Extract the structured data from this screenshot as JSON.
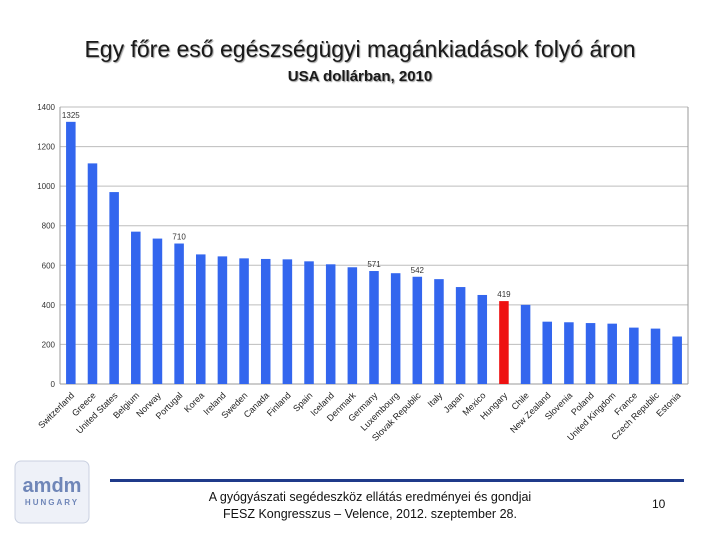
{
  "slide": {
    "title": "Egy főre eső egészségügyi magánkiadások folyó áron",
    "subtitle": "USA dollárban, 2010",
    "footer_line1": "A gyógyászati segédeszköz ellátás eredményei és gondjai",
    "footer_line2": "FESZ Kongresszus – Velence, 2012. szeptember 28.",
    "page_number": "10",
    "logo_text": "amdm",
    "logo_subtext": "HUNGARY"
  },
  "chart_data": {
    "type": "bar",
    "categories": [
      "Switzerland",
      "Greece",
      "United States",
      "Belgium",
      "Norway",
      "Portugal",
      "Korea",
      "Ireland",
      "Sweden",
      "Canada",
      "Finland",
      "Spain",
      "Iceland",
      "Denmark",
      "Germany",
      "Luxembourg",
      "Slovak Republic",
      "Italy",
      "Japan",
      "Mexico",
      "Hungary",
      "Chile",
      "New Zealand",
      "Slovenia",
      "Poland",
      "United Kingdom",
      "France",
      "Czech Republic",
      "Estonia"
    ],
    "values": [
      1325,
      1115,
      970,
      770,
      735,
      710,
      655,
      645,
      635,
      632,
      630,
      620,
      605,
      590,
      571,
      560,
      542,
      530,
      490,
      450,
      419,
      400,
      315,
      312,
      308,
      305,
      285,
      280,
      240
    ],
    "labeled": {
      "0": "1325",
      "5": "710",
      "14": "571",
      "16": "542",
      "20": "419"
    },
    "ylim": [
      0,
      1400
    ],
    "yticks": [
      0,
      200,
      400,
      600,
      800,
      1000,
      1200,
      1400
    ],
    "grid": true,
    "colors": {
      "bar": "#3366ee",
      "highlight": "#ee1111",
      "grid": "#bdbdbd"
    },
    "highlight_index": 20
  }
}
